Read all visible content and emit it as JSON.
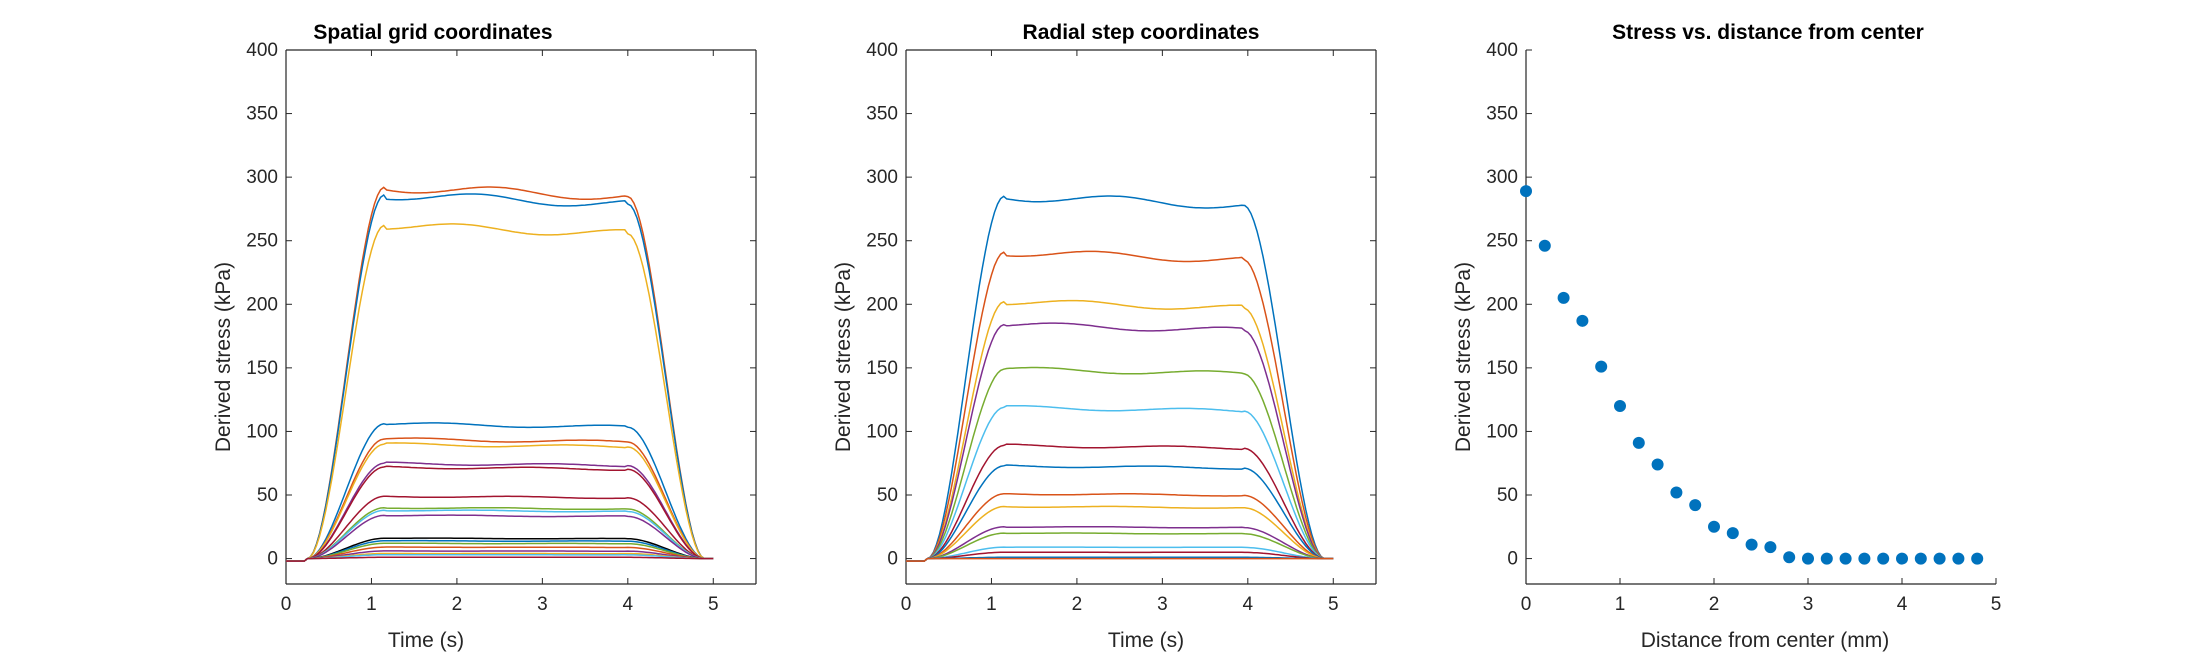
{
  "chart_data": [
    {
      "type": "line",
      "title": "Spatial grid coordinates",
      "xlabel": "Time (s)",
      "ylabel": "Derived stress (kPa)",
      "xlim": [
        0,
        5.5
      ],
      "ylim": [
        -20,
        400
      ],
      "xticks": [
        0,
        1,
        2,
        3,
        4,
        5
      ],
      "yticks": [
        0,
        50,
        100,
        150,
        200,
        250,
        300,
        350,
        400
      ],
      "pulse": {
        "rise_start": 0.25,
        "rise_end": 1.15,
        "fall_start": 4.0,
        "fall_end": 4.9,
        "t_end": 5.0
      },
      "series": [
        {
          "color": "#D95319",
          "plateau": 292
        },
        {
          "color": "#0072BD",
          "plateau": 286
        },
        {
          "color": "#EDB120",
          "plateau": 262
        },
        {
          "color": "#0072BD",
          "plateau": 106
        },
        {
          "color": "#D95319",
          "plateau": 94
        },
        {
          "color": "#EDB120",
          "plateau": 90
        },
        {
          "color": "#7E2F8E",
          "plateau": 75
        },
        {
          "color": "#A2142F",
          "plateau": 72
        },
        {
          "color": "#A2142F",
          "plateau": 49
        },
        {
          "color": "#77AC30",
          "plateau": 40
        },
        {
          "color": "#4DBEEE",
          "plateau": 38
        },
        {
          "color": "#7E2F8E",
          "plateau": 34
        },
        {
          "color": "#000000",
          "plateau": 16
        },
        {
          "color": "#0072BD",
          "plateau": 14
        },
        {
          "color": "#77AC30",
          "plateau": 12
        },
        {
          "color": "#D95319",
          "plateau": 9
        },
        {
          "color": "#7E2F8E",
          "plateau": 6
        },
        {
          "color": "#EDB120",
          "plateau": 4
        },
        {
          "color": "#4DBEEE",
          "plateau": 3
        },
        {
          "color": "#A2142F",
          "plateau": 1
        }
      ]
    },
    {
      "type": "line",
      "title": "Radial step coordinates",
      "xlabel": "Time (s)",
      "ylabel": "Derived stress (kPa)",
      "xlim": [
        0,
        5.5
      ],
      "ylim": [
        -20,
        400
      ],
      "xticks": [
        0,
        1,
        2,
        3,
        4,
        5
      ],
      "yticks": [
        0,
        50,
        100,
        150,
        200,
        250,
        300,
        350,
        400
      ],
      "pulse": {
        "rise_start": 0.25,
        "rise_end": 1.15,
        "fall_start": 3.95,
        "fall_end": 4.9,
        "t_end": 5.0
      },
      "series": [
        {
          "color": "#0072BD",
          "plateau": 285
        },
        {
          "color": "#D95319",
          "plateau": 241
        },
        {
          "color": "#EDB120",
          "plateau": 202
        },
        {
          "color": "#7E2F8E",
          "plateau": 184
        },
        {
          "color": "#77AC30",
          "plateau": 149
        },
        {
          "color": "#4DBEEE",
          "plateau": 119
        },
        {
          "color": "#A2142F",
          "plateau": 89
        },
        {
          "color": "#0072BD",
          "plateau": 73
        },
        {
          "color": "#D95319",
          "plateau": 51
        },
        {
          "color": "#EDB120",
          "plateau": 41
        },
        {
          "color": "#7E2F8E",
          "plateau": 25
        },
        {
          "color": "#77AC30",
          "plateau": 20
        },
        {
          "color": "#4DBEEE",
          "plateau": 9
        },
        {
          "color": "#A2142F",
          "plateau": 5
        },
        {
          "color": "#0072BD",
          "plateau": 1
        },
        {
          "color": "#D95319",
          "plateau": 0
        }
      ]
    },
    {
      "type": "scatter",
      "title": "Stress vs. distance from center",
      "xlabel": "Distance from center (mm)",
      "ylabel": "Derived stress (kPa)",
      "xlim": [
        0,
        5
      ],
      "ylim": [
        -20,
        400
      ],
      "xticks": [
        0,
        1,
        2,
        3,
        4,
        5
      ],
      "yticks": [
        0,
        50,
        100,
        150,
        200,
        250,
        300,
        350,
        400
      ],
      "marker_color": "#0072BD",
      "box": false,
      "x": [
        0,
        0.2,
        0.4,
        0.6,
        0.8,
        1.0,
        1.2,
        1.4,
        1.6,
        1.8,
        2.0,
        2.2,
        2.4,
        2.6,
        2.8,
        3.0,
        3.2,
        3.4,
        3.6,
        3.8,
        4.0,
        4.2,
        4.4,
        4.6,
        4.8
      ],
      "y": [
        289,
        246,
        205,
        187,
        151,
        120,
        91,
        74,
        52,
        42,
        25,
        20,
        11,
        9,
        1,
        0,
        0,
        0,
        0,
        0,
        0,
        0,
        0,
        0,
        0
      ]
    }
  ]
}
